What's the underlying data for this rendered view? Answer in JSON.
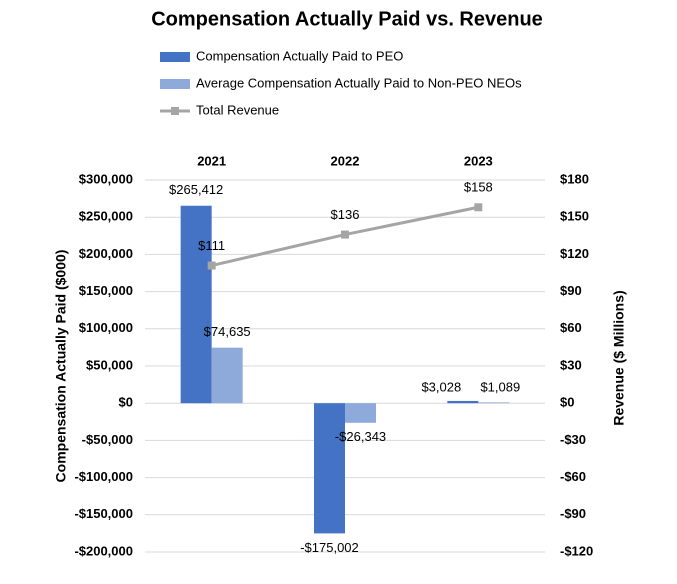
{
  "chart_data": {
    "type": "bar-line",
    "title": "Compensation Actually Paid vs. Revenue",
    "y_label": "Compensation Actually Paid ($000)",
    "y2_label": "Revenue ($ Millions)",
    "categories": [
      "2021",
      "2022",
      "2023"
    ],
    "series": [
      {
        "name": "Compensation Actually Paid to PEO",
        "type": "bar",
        "color": "#4472c4",
        "values": [
          265412,
          -175002,
          3028
        ],
        "value_labels": [
          "$265,412",
          "-$175,002",
          "$3,028"
        ]
      },
      {
        "name": "Average Compensation Actually Paid to Non-PEO NEOs",
        "type": "bar",
        "color": "#8eaadb",
        "values": [
          74635,
          -26343,
          1089
        ],
        "value_labels": [
          "$74,635",
          "-$26,343",
          "$1,089"
        ]
      },
      {
        "name": "Total Revenue",
        "type": "line",
        "axis": "y2",
        "color": "#a5a5a5",
        "values": [
          111,
          136,
          158
        ],
        "value_labels": [
          "$111",
          "$136",
          "$158"
        ]
      }
    ],
    "ylim": [
      -200000,
      300000
    ],
    "yticks": [
      {
        "value": -200000,
        "label": "-$200,000"
      },
      {
        "value": -150000,
        "label": "-$150,000"
      },
      {
        "value": -100000,
        "label": "-$100,000"
      },
      {
        "value": -50000,
        "label": "-$50,000"
      },
      {
        "value": 0,
        "label": "$0"
      },
      {
        "value": 50000,
        "label": "$50,000"
      },
      {
        "value": 100000,
        "label": "$100,000"
      },
      {
        "value": 150000,
        "label": "$150,000"
      },
      {
        "value": 200000,
        "label": "$200,000"
      },
      {
        "value": 250000,
        "label": "$250,000"
      },
      {
        "value": 300000,
        "label": "$300,000"
      }
    ],
    "y2lim": [
      -120,
      180
    ],
    "y2ticks": [
      {
        "value": -120,
        "label": "-$120"
      },
      {
        "value": -90,
        "label": "-$90"
      },
      {
        "value": -60,
        "label": "-$60"
      },
      {
        "value": -30,
        "label": "-$30"
      },
      {
        "value": 0,
        "label": "$0"
      },
      {
        "value": 30,
        "label": "$30"
      },
      {
        "value": 60,
        "label": "$60"
      },
      {
        "value": 90,
        "label": "$90"
      },
      {
        "value": 120,
        "label": "$120"
      },
      {
        "value": 150,
        "label": "$150"
      },
      {
        "value": 180,
        "label": "$180"
      }
    ],
    "grid": true,
    "legend": "top"
  }
}
